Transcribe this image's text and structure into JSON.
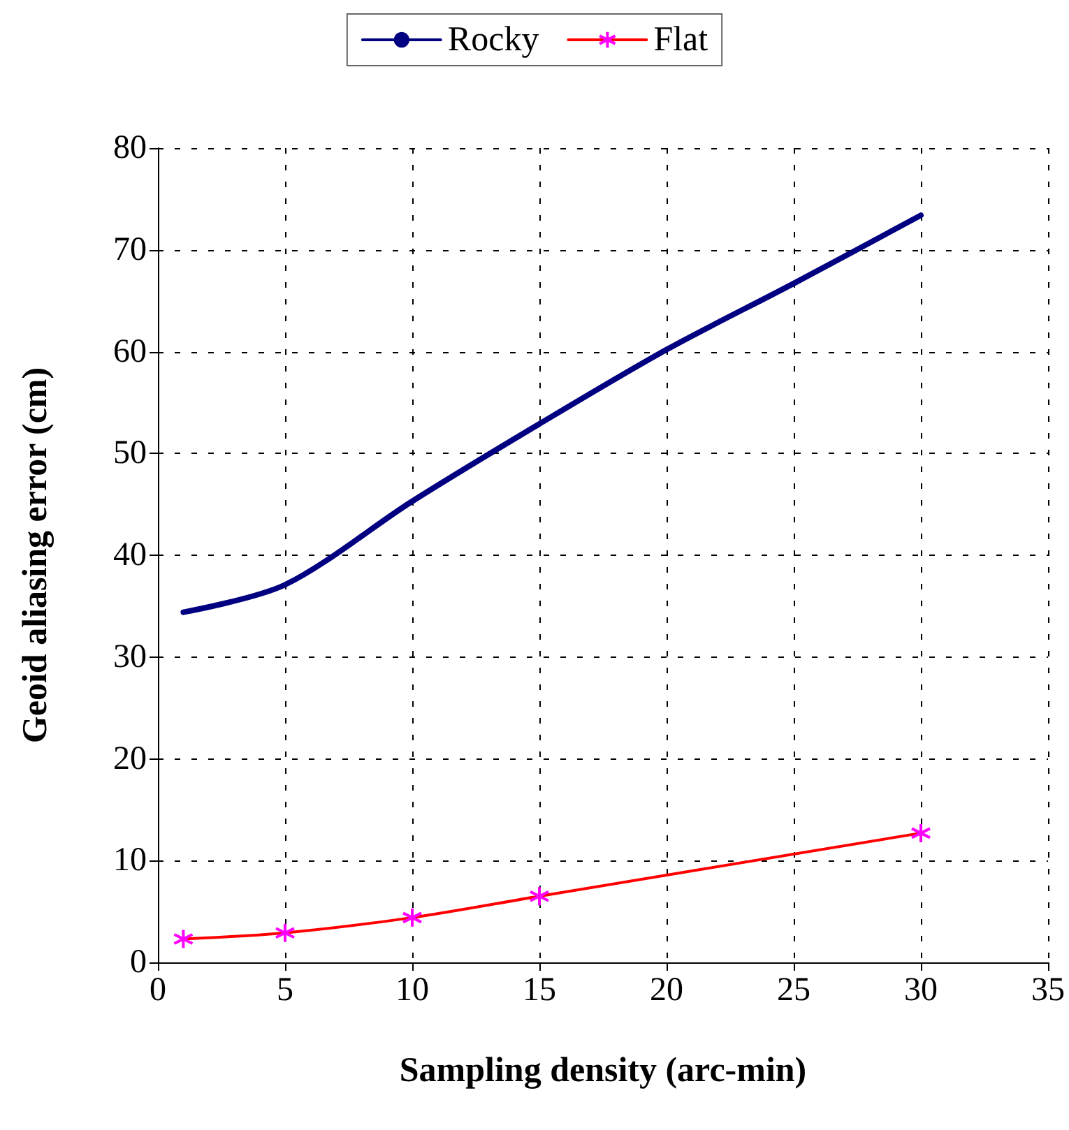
{
  "chart_data": {
    "type": "line",
    "xlabel": "Sampling density (arc-min)",
    "ylabel": "Geoid aliasing error (cm)",
    "x": [
      1,
      5,
      10,
      15,
      20,
      25,
      30
    ],
    "series": [
      {
        "name": "Rocky",
        "color": "#000080",
        "values": [
          34.4,
          37.1,
          45.3,
          52.9,
          60.2,
          66.7,
          73.4
        ],
        "marker": "none"
      },
      {
        "name": "Flat",
        "color": "#ff0000",
        "colors": [
          "#ff00ff",
          "#ff00ff",
          "#ff00ff",
          "#ff00ff",
          "#ff00ff",
          "#ff00ff",
          "#ff00ff"
        ],
        "values": [
          2.3,
          2.9,
          4.4,
          6.5,
          null,
          null,
          12.7
        ],
        "marker": "cross"
      }
    ],
    "xlim": [
      0,
      35
    ],
    "xticks": [
      0,
      5,
      10,
      15,
      20,
      25,
      30,
      35
    ],
    "ylim": [
      0,
      80
    ],
    "yticks": [
      0,
      10,
      20,
      30,
      40,
      50,
      60,
      70,
      80
    ],
    "grid": true,
    "legend": "top",
    "line_style": "solid"
  }
}
